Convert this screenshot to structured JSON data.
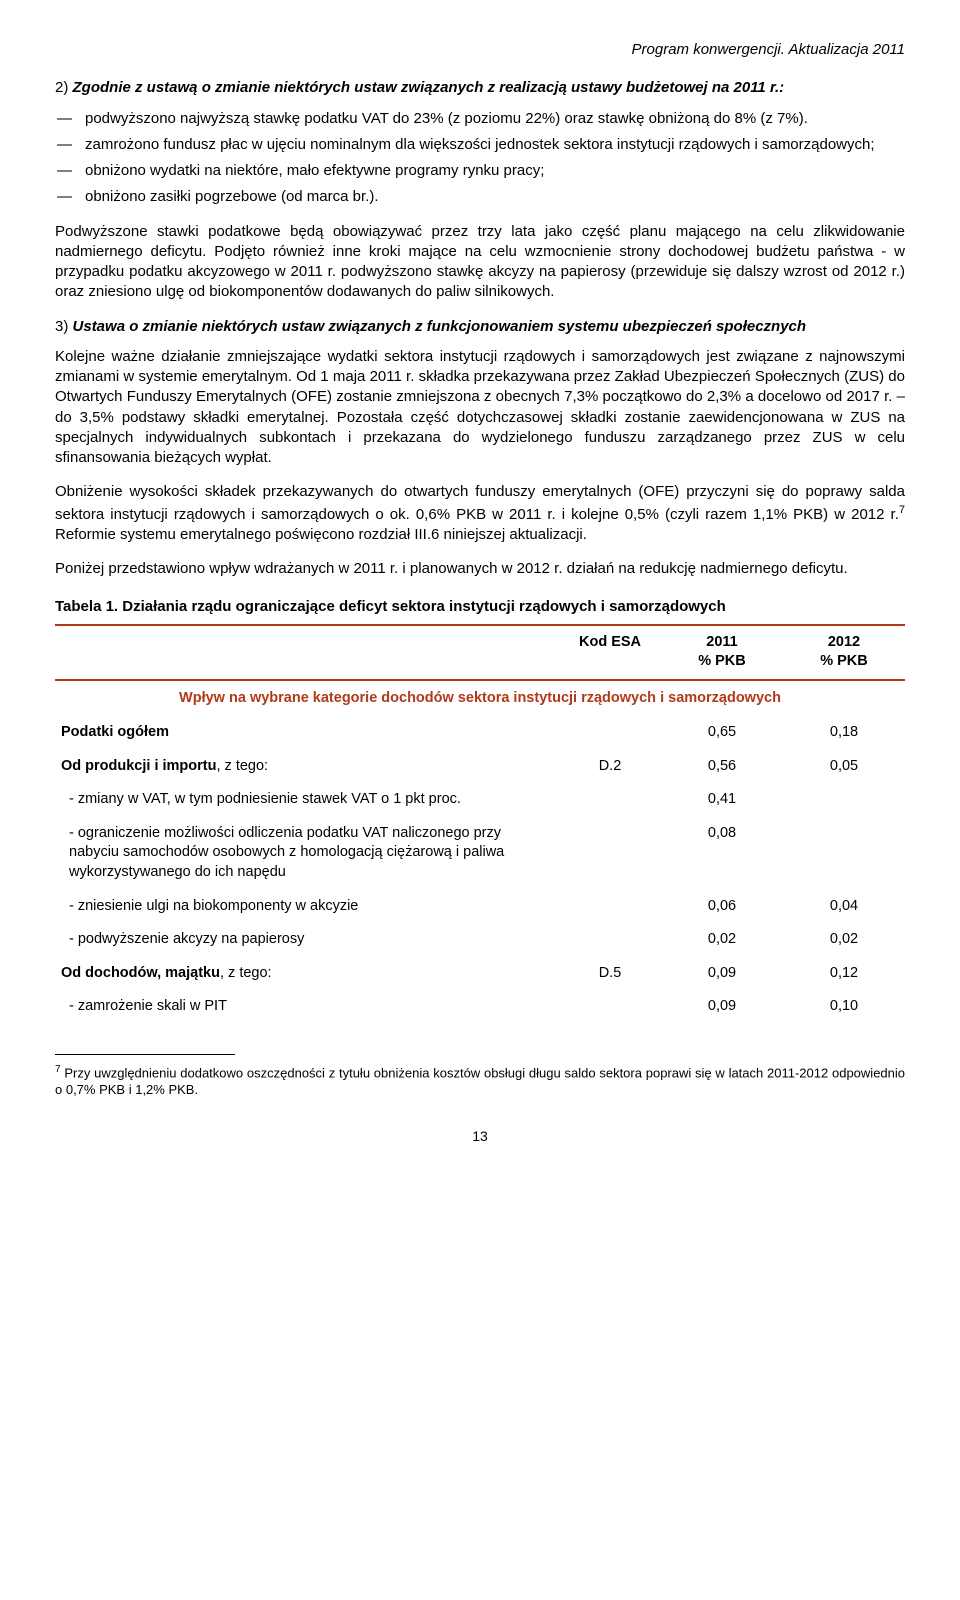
{
  "colors": {
    "accent": "#b03a1a",
    "text": "#000000",
    "background": "#ffffff"
  },
  "header": {
    "title": "Program konwergencji. Aktualizacja 2011"
  },
  "section2": {
    "lead_prefix": "2)  ",
    "lead_bold": "Zgodnie z ustawą o zmianie niektórych ustaw związanych z realizacją ustawy budżetowej na 2011 r.:",
    "bullets": [
      "podwyższono najwyższą stawkę podatku VAT do 23% (z poziomu 22%) oraz stawkę obniżoną do 8% (z 7%).",
      "zamrożono fundusz płac w ujęciu nominalnym dla większości jednostek sektora instytucji rządowych i samorządowych;",
      "obniżono wydatki na niektóre, mało efektywne programy rynku pracy;",
      "obniżono zasiłki pogrzebowe (od marca br.)."
    ],
    "para": "Podwyższone stawki podatkowe będą obowiązywać przez trzy lata jako część planu mającego na celu zlikwidowanie nadmiernego deficytu. Podjęto również inne kroki mające na celu wzmocnienie strony dochodowej budżetu państwa - w przypadku podatku akcyzowego w 2011 r. podwyższono stawkę akcyzy na papierosy (przewiduje się dalszy wzrost od 2012 r.) oraz zniesiono ulgę od biokomponentów dodawanych do paliw silnikowych."
  },
  "section3": {
    "lead_prefix": "3)  ",
    "lead_bold": "Ustawa o zmianie niektórych ustaw związanych z funkcjonowaniem systemu ubezpieczeń społecznych",
    "para1": "Kolejne ważne działanie zmniejszające wydatki sektora instytucji rządowych i samorządowych jest związane z najnowszymi zmianami w systemie emerytalnym. Od 1 maja 2011 r. składka przekazywana przez Zakład Ubezpieczeń Społecznych (ZUS) do Otwartych Funduszy Emerytalnych (OFE) zostanie zmniejszona z obecnych 7,3% początkowo do 2,3% a docelowo od 2017 r. – do 3,5% podstawy składki emerytalnej. Pozostała część dotychczasowej składki zostanie zaewidencjonowana w ZUS na specjalnych indywidualnych subkontach i przekazana do wydzielonego funduszu zarządzanego przez ZUS w celu sfinansowania bieżących wypłat.",
    "para2_pre": "Obniżenie wysokości składek przekazywanych do otwartych funduszy emerytalnych (OFE) przyczyni się do poprawy salda sektora instytucji rządowych i samorządowych o ok. 0,6% PKB w 2011 r. i kolejne 0,5% (czyli razem 1,1% PKB) w 2012 r.",
    "para2_sup": "7",
    "para2_post": " Reformie systemu emerytalnego poświęcono rozdział III.6 niniejszej aktualizacji.",
    "para3": "Poniżej przedstawiono wpływ wdrażanych w 2011 r. i planowanych w 2012 r. działań na redukcję nadmiernego deficytu."
  },
  "table": {
    "caption": "Tabela 1. Działania rządu ograniczające deficyt sektora instytucji rządowych i samorządowych",
    "head": {
      "esa": "Kod ESA",
      "y1_top": "2011",
      "y1_sub": "% PKB",
      "y2_top": "2012",
      "y2_sub": "% PKB"
    },
    "subheader": "Wpływ na wybrane kategorie dochodów sektora instytucji rządowych i samorządowych",
    "rows": [
      {
        "label": "Podatki ogółem",
        "bold": true,
        "indent": false,
        "esa": "",
        "y1": "0,65",
        "y2": "0,18"
      },
      {
        "label": "Od produkcji i importu",
        "suffix": ", z tego:",
        "bold": true,
        "indent": false,
        "esa": "D.2",
        "y1": "0,56",
        "y2": "0,05"
      },
      {
        "label": "- zmiany w VAT, w tym podniesienie stawek VAT o 1 pkt proc.",
        "bold": false,
        "indent": true,
        "esa": "",
        "y1": "0,41",
        "y2": ""
      },
      {
        "label": "- ograniczenie możliwości odliczenia podatku VAT naliczonego przy nabyciu samochodów osobowych z homologacją ciężarową i paliwa wykorzystywanego do ich napędu",
        "bold": false,
        "indent": true,
        "esa": "",
        "y1": "0,08",
        "y2": ""
      },
      {
        "label": "- zniesienie ulgi na biokomponenty w akcyzie",
        "bold": false,
        "indent": true,
        "esa": "",
        "y1": "0,06",
        "y2": "0,04"
      },
      {
        "label": "- podwyższenie akcyzy na papierosy",
        "bold": false,
        "indent": true,
        "esa": "",
        "y1": "0,02",
        "y2": "0,02"
      },
      {
        "label": "Od dochodów, majątku",
        "suffix": ", z tego:",
        "bold": true,
        "indent": false,
        "esa": "D.5",
        "y1": "0,09",
        "y2": "0,12"
      },
      {
        "label": "- zamrożenie skali w PIT",
        "bold": false,
        "indent": true,
        "esa": "",
        "y1": "0,09",
        "y2": "0,10"
      }
    ]
  },
  "footnote": {
    "num": "7",
    "text": " Przy uwzględnieniu dodatkowo oszczędności z tytułu obniżenia kosztów obsługi długu saldo sektora poprawi się w latach 2011-2012 odpowiednio o 0,7% PKB i 1,2% PKB."
  },
  "page_number": "13"
}
